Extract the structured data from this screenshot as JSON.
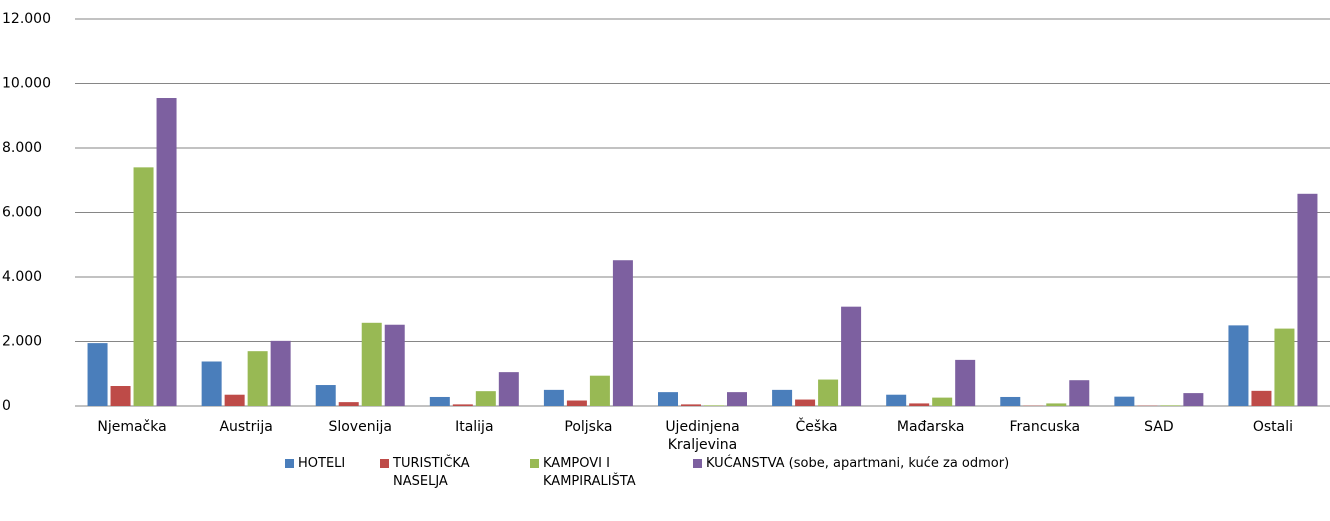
{
  "chart_data": {
    "type": "bar",
    "categories": [
      "Njemačka",
      "Austrija",
      "Slovenija",
      "Italija",
      "Poljska",
      "Ujedinjena Kraljevina",
      "Češka",
      "Mađarska",
      "Francuska",
      "SAD",
      "Ostali"
    ],
    "series": [
      {
        "name": "HOTELI",
        "color": "#4a7ebb",
        "values": [
          1950,
          1380,
          650,
          280,
          500,
          430,
          500,
          350,
          280,
          290,
          2500
        ]
      },
      {
        "name": "TURISTIČKA NASELJA",
        "color": "#be4b48",
        "values": [
          620,
          350,
          120,
          50,
          170,
          50,
          200,
          80,
          10,
          10,
          470
        ]
      },
      {
        "name": "KAMPOVI I KAMPIRALIŠTA",
        "color": "#98b954",
        "values": [
          7400,
          1700,
          2580,
          460,
          940,
          20,
          820,
          260,
          80,
          20,
          2400
        ]
      },
      {
        "name": "KUĆANSTVA (sobe, apartmani, kuće za odmor)",
        "color": "#7d60a0",
        "values": [
          9550,
          2020,
          2520,
          1050,
          4520,
          430,
          3080,
          1430,
          800,
          400,
          6580
        ]
      }
    ],
    "ylim": [
      0,
      12000
    ],
    "yticks": [
      0,
      {
        "value": 2000,
        "label": "2.000"
      },
      {
        "value": 4000,
        "label": "4.000"
      },
      {
        "value": 6000,
        "label": "6.000"
      },
      {
        "value": 8000,
        "label": "8.000"
      },
      {
        "value": 10000,
        "label": "10.000"
      },
      {
        "value": 12000,
        "label": "12.000"
      }
    ],
    "grid": true
  }
}
